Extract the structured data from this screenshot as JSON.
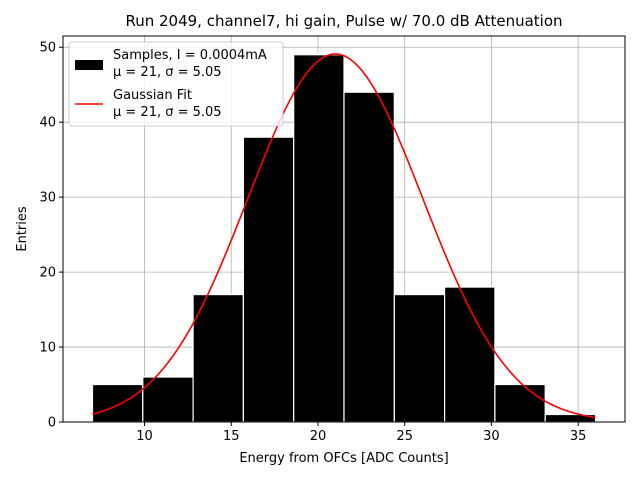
{
  "chart_data": {
    "type": "bar",
    "title": "Run 2049, channel7, hi gain, Pulse w/ 70.0 dB Attenuation",
    "xlabel": "Energy from OFCs [ADC Counts]",
    "ylabel": "Entries",
    "xlim": [
      5.3,
      37.7
    ],
    "ylim": [
      0,
      51.5
    ],
    "xticks": [
      10,
      15,
      20,
      25,
      30,
      35
    ],
    "yticks": [
      0,
      10,
      20,
      30,
      40,
      50
    ],
    "grid": true,
    "histogram": {
      "bin_edges": [
        7.0,
        9.9,
        12.8,
        15.7,
        18.6,
        21.5,
        24.4,
        27.3,
        30.2,
        33.1,
        36.0
      ],
      "counts": [
        5,
        6,
        17,
        38,
        49,
        44,
        17,
        18,
        5,
        1
      ],
      "color": "#000000",
      "edgecolor": "#ffffff"
    },
    "fit": {
      "type": "gaussian",
      "amplitude": 49.1,
      "mu": 21,
      "sigma": 5.05,
      "x_range": [
        7.0,
        36.0
      ],
      "color": "#ff0000"
    },
    "legend": {
      "placement": "top-left",
      "entries": [
        {
          "line1": "Samples, I = 0.0004mA",
          "line2": "μ = 21, σ = 5.05",
          "kind": "patch",
          "color": "#000000"
        },
        {
          "line1": "Gaussian Fit",
          "line2": "μ = 21, σ = 5.05",
          "kind": "line",
          "color": "#ff0000"
        }
      ]
    }
  }
}
